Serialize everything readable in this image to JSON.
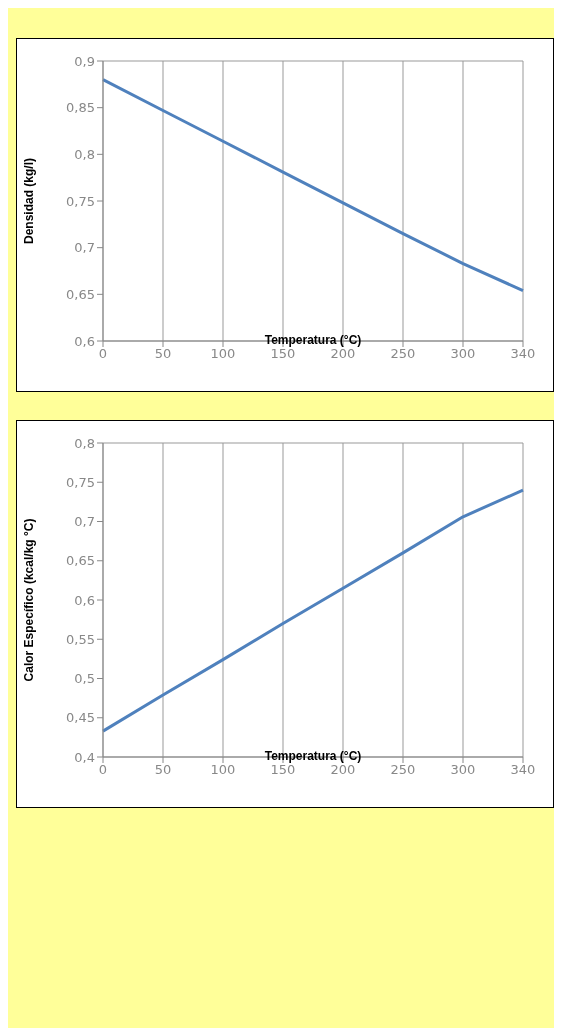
{
  "chart_data": [
    {
      "type": "line",
      "xlabel": "Temperatura (°C)",
      "ylabel": "Densidad (kg/l)",
      "categories": [
        "0",
        "50",
        "100",
        "150",
        "200",
        "250",
        "300",
        "340"
      ],
      "series": [
        {
          "color": "#4f81bd",
          "values": [
            0.88,
            0.847,
            0.814,
            0.781,
            0.748,
            0.715,
            0.683,
            0.654
          ]
        }
      ],
      "ylim": [
        0.6,
        0.9
      ],
      "yticks": [
        {
          "value": 0.6,
          "label": "0,6"
        },
        {
          "value": 0.65,
          "label": "0,65"
        },
        {
          "value": 0.7,
          "label": "0,7"
        },
        {
          "value": 0.75,
          "label": "0,75"
        },
        {
          "value": 0.8,
          "label": "0,8"
        },
        {
          "value": 0.85,
          "label": "0,85"
        },
        {
          "value": 0.9,
          "label": "0,9"
        }
      ],
      "grid": true,
      "legend": false,
      "marker": "none",
      "line_style": "solid"
    },
    {
      "type": "line",
      "xlabel": "Temperatura (°C)",
      "ylabel": "Calor Específico (kcal/kg °C)",
      "categories": [
        "0",
        "50",
        "100",
        "150",
        "200",
        "250",
        "300",
        "340"
      ],
      "series": [
        {
          "color": "#4f81bd",
          "values": [
            0.433,
            0.479,
            0.524,
            0.57,
            0.615,
            0.66,
            0.706,
            0.74
          ]
        }
      ],
      "ylim": [
        0.4,
        0.8
      ],
      "yticks": [
        {
          "value": 0.4,
          "label": "0,4"
        },
        {
          "value": 0.45,
          "label": "0,45"
        },
        {
          "value": 0.5,
          "label": "0,5"
        },
        {
          "value": 0.55,
          "label": "0,55"
        },
        {
          "value": 0.6,
          "label": "0,6"
        },
        {
          "value": 0.65,
          "label": "0,65"
        },
        {
          "value": 0.7,
          "label": "0,7"
        },
        {
          "value": 0.75,
          "label": "0,75"
        },
        {
          "value": 0.8,
          "label": "0,8"
        }
      ],
      "grid": true,
      "legend": false,
      "marker": "none",
      "line_style": "solid"
    }
  ]
}
